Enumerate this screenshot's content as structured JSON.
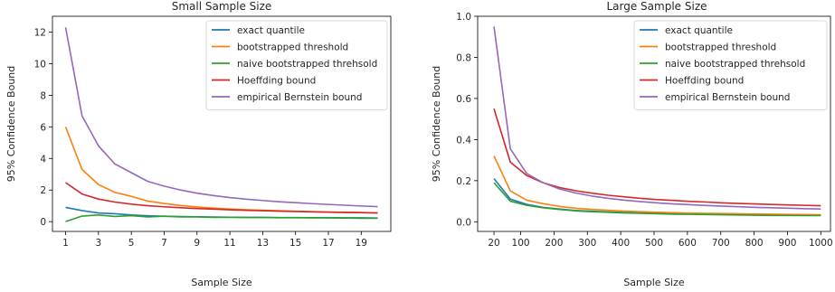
{
  "chart_data": [
    {
      "type": "line",
      "title": "Small Sample Size",
      "xlabel": "Sample Size",
      "ylabel": "95% Confidence Bound",
      "xlim": [
        0.2,
        20.8
      ],
      "ylim": [
        -0.62,
        13.0
      ],
      "xticks": [
        1,
        3,
        5,
        7,
        9,
        11,
        13,
        15,
        17,
        19
      ],
      "xtick_labels": [
        "1",
        "3",
        "5",
        "7",
        "9",
        "11",
        "13",
        "15",
        "17",
        "19"
      ],
      "yticks": [
        0,
        2,
        4,
        6,
        8,
        10,
        12
      ],
      "ytick_labels": [
        "0",
        "2",
        "4",
        "6",
        "8",
        "10",
        "12"
      ],
      "legend_position": "top-right",
      "grid": false,
      "x": [
        1,
        2,
        3,
        4,
        5,
        6,
        7,
        8,
        9,
        10,
        11,
        12,
        13,
        14,
        15,
        16,
        17,
        18,
        19,
        20
      ],
      "series": [
        {
          "name": "exact quantile",
          "color": "#1f77b4",
          "values": [
            0.9,
            0.7,
            0.55,
            0.5,
            0.42,
            0.37,
            0.34,
            0.32,
            0.31,
            0.29,
            0.28,
            0.27,
            0.27,
            0.26,
            0.26,
            0.25,
            0.25,
            0.24,
            0.24,
            0.23
          ]
        },
        {
          "name": "bootstrapped threshold",
          "color": "#ff7f0e",
          "values": [
            6.0,
            3.3,
            2.35,
            1.85,
            1.6,
            1.3,
            1.15,
            1.02,
            0.93,
            0.86,
            0.8,
            0.76,
            0.72,
            0.69,
            0.66,
            0.63,
            0.61,
            0.59,
            0.57,
            0.55
          ]
        },
        {
          "name": "naive bootstrapped threhsold",
          "color": "#2ca02c",
          "values": [
            0.0,
            0.35,
            0.42,
            0.33,
            0.38,
            0.3,
            0.34,
            0.3,
            0.3,
            0.27,
            0.28,
            0.26,
            0.26,
            0.25,
            0.25,
            0.24,
            0.24,
            0.23,
            0.21,
            0.21
          ]
        },
        {
          "name": "Hoeffding bound",
          "color": "#d62728",
          "values": [
            2.47,
            1.75,
            1.43,
            1.24,
            1.11,
            1.01,
            0.94,
            0.88,
            0.83,
            0.79,
            0.75,
            0.71,
            0.69,
            0.66,
            0.64,
            0.62,
            0.6,
            0.58,
            0.57,
            0.55
          ]
        },
        {
          "name": "empirical Bernstein bound",
          "color": "#9467bd",
          "values": [
            12.3,
            6.7,
            4.8,
            3.65,
            3.1,
            2.55,
            2.25,
            2.0,
            1.8,
            1.65,
            1.52,
            1.42,
            1.34,
            1.26,
            1.2,
            1.14,
            1.09,
            1.04,
            0.99,
            0.95
          ]
        }
      ]
    },
    {
      "type": "line",
      "title": "Large Sample Size",
      "xlabel": "Sample Size",
      "ylabel": "95% Confidence Bound",
      "xlim": [
        -29,
        1029
      ],
      "ylim": [
        -0.047,
        1.0
      ],
      "xticks": [
        20,
        100,
        200,
        300,
        400,
        500,
        600,
        700,
        800,
        900,
        1000
      ],
      "xtick_labels": [
        "20",
        "100",
        "200",
        "300",
        "400",
        "500",
        "600",
        "700",
        "800",
        "900",
        "1000"
      ],
      "yticks": [
        0.0,
        0.2,
        0.4,
        0.6,
        0.8,
        1.0
      ],
      "ytick_labels": [
        "0.0",
        "0.2",
        "0.4",
        "0.6",
        "0.8",
        "1.0"
      ],
      "legend_position": "top-right",
      "grid": false,
      "x": [
        20,
        69,
        118,
        167,
        216,
        265,
        314,
        363,
        412,
        461,
        510,
        559,
        608,
        657,
        706,
        755,
        804,
        853,
        902,
        951,
        1000
      ],
      "series": [
        {
          "name": "exact quantile",
          "color": "#1f77b4",
          "values": [
            0.21,
            0.11,
            0.085,
            0.07,
            0.062,
            0.055,
            0.051,
            0.048,
            0.045,
            0.043,
            0.041,
            0.039,
            0.038,
            0.037,
            0.036,
            0.035,
            0.034,
            0.034,
            0.033,
            0.032,
            0.032
          ]
        },
        {
          "name": "bootstrapped threshold",
          "color": "#ff7f0e",
          "values": [
            0.32,
            0.15,
            0.105,
            0.088,
            0.075,
            0.066,
            0.06,
            0.056,
            0.052,
            0.049,
            0.046,
            0.044,
            0.042,
            0.041,
            0.04,
            0.039,
            0.038,
            0.037,
            0.036,
            0.035,
            0.034
          ]
        },
        {
          "name": "naive bootstrapped threhsold",
          "color": "#2ca02c",
          "values": [
            0.19,
            0.1,
            0.08,
            0.068,
            0.06,
            0.053,
            0.049,
            0.046,
            0.043,
            0.041,
            0.039,
            0.037,
            0.036,
            0.035,
            0.034,
            0.033,
            0.032,
            0.031,
            0.031,
            0.03,
            0.03
          ]
        },
        {
          "name": "Hoeffding bound",
          "color": "#d62728",
          "values": [
            0.55,
            0.29,
            0.225,
            0.19,
            0.167,
            0.151,
            0.139,
            0.129,
            0.121,
            0.114,
            0.108,
            0.104,
            0.099,
            0.096,
            0.092,
            0.089,
            0.087,
            0.084,
            0.082,
            0.08,
            0.078
          ]
        },
        {
          "name": "empirical Bernstein bound",
          "color": "#9467bd",
          "values": [
            0.95,
            0.355,
            0.235,
            0.19,
            0.16,
            0.14,
            0.125,
            0.114,
            0.105,
            0.098,
            0.092,
            0.087,
            0.083,
            0.079,
            0.076,
            0.073,
            0.07,
            0.068,
            0.066,
            0.064,
            0.062
          ]
        }
      ]
    }
  ]
}
